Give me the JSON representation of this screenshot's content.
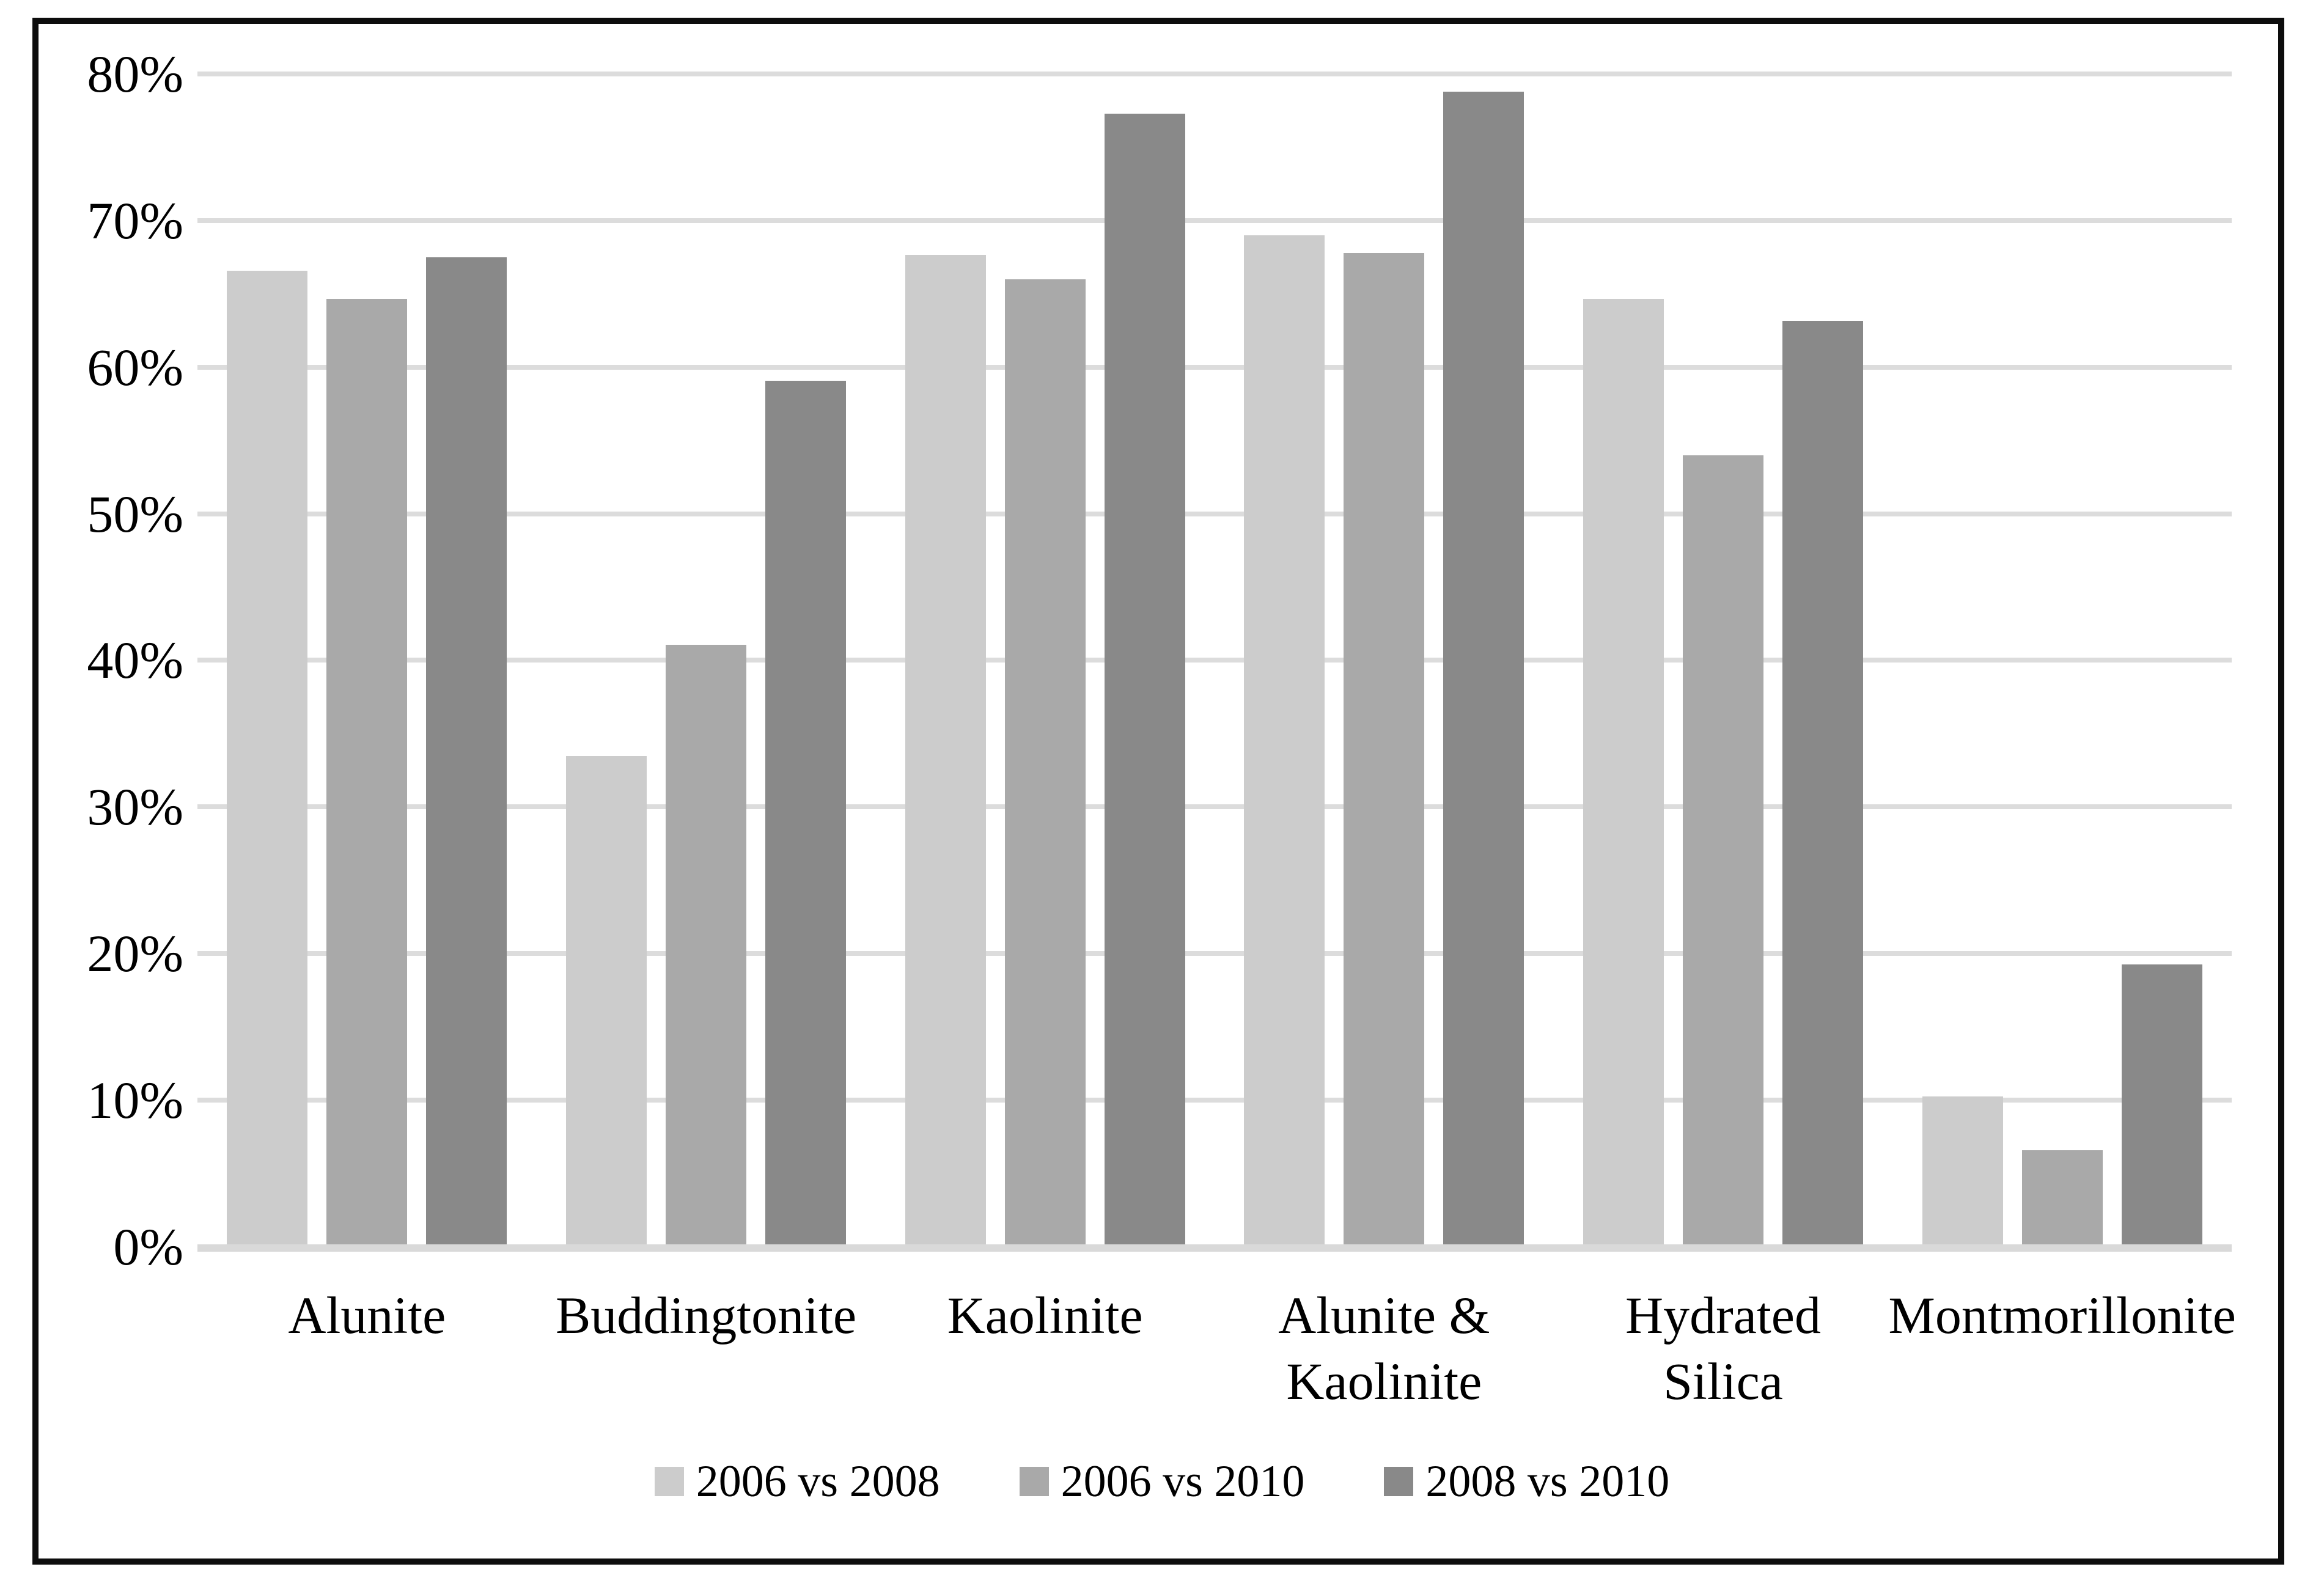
{
  "figure": {
    "background": "#ffffff",
    "border_color": "#0d0d0d"
  },
  "chart_data": {
    "type": "bar",
    "title": "",
    "xlabel": "",
    "ylabel": "",
    "categories": [
      "Alunite",
      "Buddingtonite",
      "Kaolinite",
      "Alunite & Kaolinite",
      "Hydrated Silica",
      "Montmorillonite"
    ],
    "category_labels_display": [
      "Alunite",
      "Buddingtonite",
      "Kaolinite",
      "Alunite &\nKaolinite",
      "Hydrated\nSilica",
      "Montmorillonite"
    ],
    "series": [
      {
        "name": "2006 vs 2008",
        "color": "#cccccc",
        "values": [
          66.4,
          33.3,
          67.5,
          68.8,
          64.5,
          10.1
        ]
      },
      {
        "name": "2006 vs 2010",
        "color": "#a9a9a9",
        "values": [
          64.5,
          40.9,
          65.8,
          67.6,
          53.8,
          6.4
        ]
      },
      {
        "name": "2008 vs 2010",
        "color": "#898989",
        "values": [
          67.3,
          58.9,
          77.1,
          78.6,
          63.0,
          19.1
        ]
      }
    ],
    "ylim": [
      0,
      80
    ],
    "ytick_step": 10,
    "ytick_labels": [
      "0%",
      "10%",
      "20%",
      "30%",
      "40%",
      "50%",
      "60%",
      "70%",
      "80%"
    ],
    "grid": true,
    "gridline_color": "#dcdcdc",
    "axisline_color": "#d9d9d9",
    "legend_position": "bottom",
    "legend": [
      {
        "label": "2006 vs 2008",
        "color": "#cccccc"
      },
      {
        "label": "2006 vs 2010",
        "color": "#a9a9a9"
      },
      {
        "label": "2008 vs 2010",
        "color": "#898989"
      }
    ]
  }
}
